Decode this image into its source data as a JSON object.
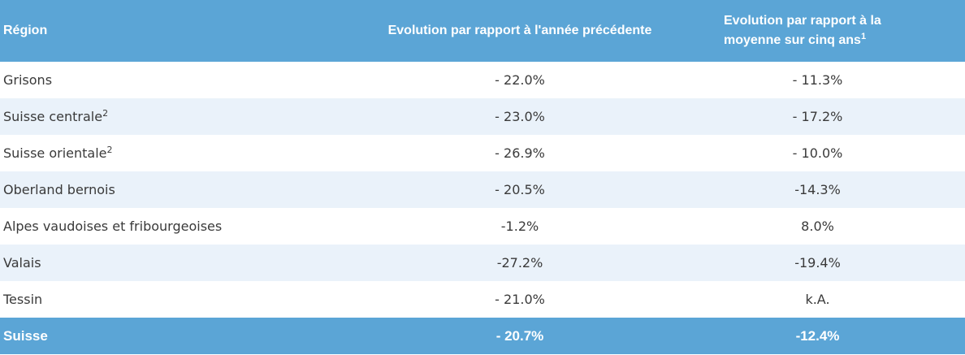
{
  "header": {
    "col1": "Région",
    "col2": "Evolution par rapport à l'année précédente",
    "col3_line1": "Evolution par rapport à la",
    "col3_line2": "moyenne sur cinq ans",
    "col3_sup": "1"
  },
  "rows": [
    {
      "region": "Grisons",
      "sup": "",
      "prev_year": "- 22.0%",
      "five_year": "- 11.3%"
    },
    {
      "region": "Suisse centrale",
      "sup": "2",
      "prev_year": "- 23.0%",
      "five_year": "- 17.2%"
    },
    {
      "region": "Suisse orientale",
      "sup": "2",
      "prev_year": "- 26.9%",
      "five_year": "- 10.0%"
    },
    {
      "region": "Oberland bernois",
      "sup": "",
      "prev_year": "- 20.5%",
      "five_year": "-14.3%"
    },
    {
      "region": "Alpes vaudoises et fribourgeoises",
      "sup": "",
      "prev_year": "-1.2%",
      "five_year": "8.0%"
    },
    {
      "region": "Valais",
      "sup": "",
      "prev_year": "-27.2%",
      "five_year": "-19.4%"
    },
    {
      "region": "Tessin",
      "sup": "",
      "prev_year": "- 21.0%",
      "five_year": "k.A."
    }
  ],
  "total": {
    "region": "Suisse",
    "prev_year": "- 20.7%",
    "five_year": "-12.4%"
  },
  "colors": {
    "header_bg": "#5ba5d6",
    "stripe_bg": "#eaf2fa",
    "text": "#3a3a3a"
  }
}
